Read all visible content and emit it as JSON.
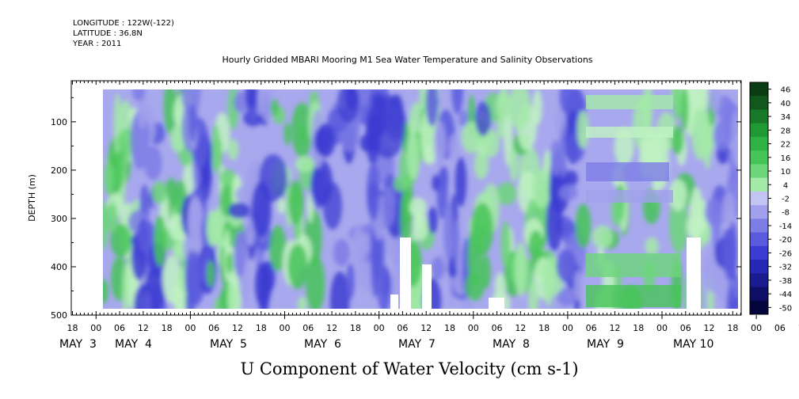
{
  "header": {
    "longitude": "LONGITUDE : 122W(-122)",
    "latitude": "LATITUDE : 36.8N",
    "year": "YEAR : 2011"
  },
  "chart_data": {
    "type": "heatmap",
    "title": "Hourly Gridded MBARI Mooring M1 Sea Water Temperature and Salinity Observations",
    "xlabel": "U Component of Water Velocity (cm s-1)",
    "ylabel": "DEPTH (m)",
    "ylim": [
      500,
      15
    ],
    "y_ticks": [
      100,
      200,
      300,
      400,
      500
    ],
    "x_hour_ticks": [
      "18",
      "00",
      "06",
      "12",
      "18",
      "00",
      "06",
      "12",
      "18",
      "00",
      "06",
      "12",
      "18",
      "00",
      "06",
      "12",
      "18",
      "00",
      "06",
      "12",
      "18",
      "00",
      "06",
      "12",
      "18",
      "00",
      "06",
      "12",
      "18",
      "00",
      "06",
      "12",
      "18"
    ],
    "x_day_labels": [
      "MAY  3",
      "MAY  4",
      "MAY  5",
      "MAY  6",
      "MAY  7",
      "MAY  8",
      "MAY  9",
      "MAY 10"
    ],
    "colorbar": {
      "labels": [
        "46",
        "40",
        "34",
        "28",
        "22",
        "16",
        "10",
        "4",
        "-2",
        "-8",
        "-14",
        "-20",
        "-26",
        "-32",
        "-38",
        "-44",
        "-50"
      ],
      "colors": [
        "#0b3d14",
        "#11581d",
        "#187a28",
        "#1f9933",
        "#2fb244",
        "#47c458",
        "#6dd67a",
        "#a3eaa8",
        "#c4c4f2",
        "#a0a0ec",
        "#7d7de6",
        "#5a5ade",
        "#3c3cd2",
        "#2727b6",
        "#1b1b90",
        "#0e0e66",
        "#05053e"
      ]
    },
    "notes": [
      "velocity range shown from -50 to 46 cm s-1"
    ]
  }
}
